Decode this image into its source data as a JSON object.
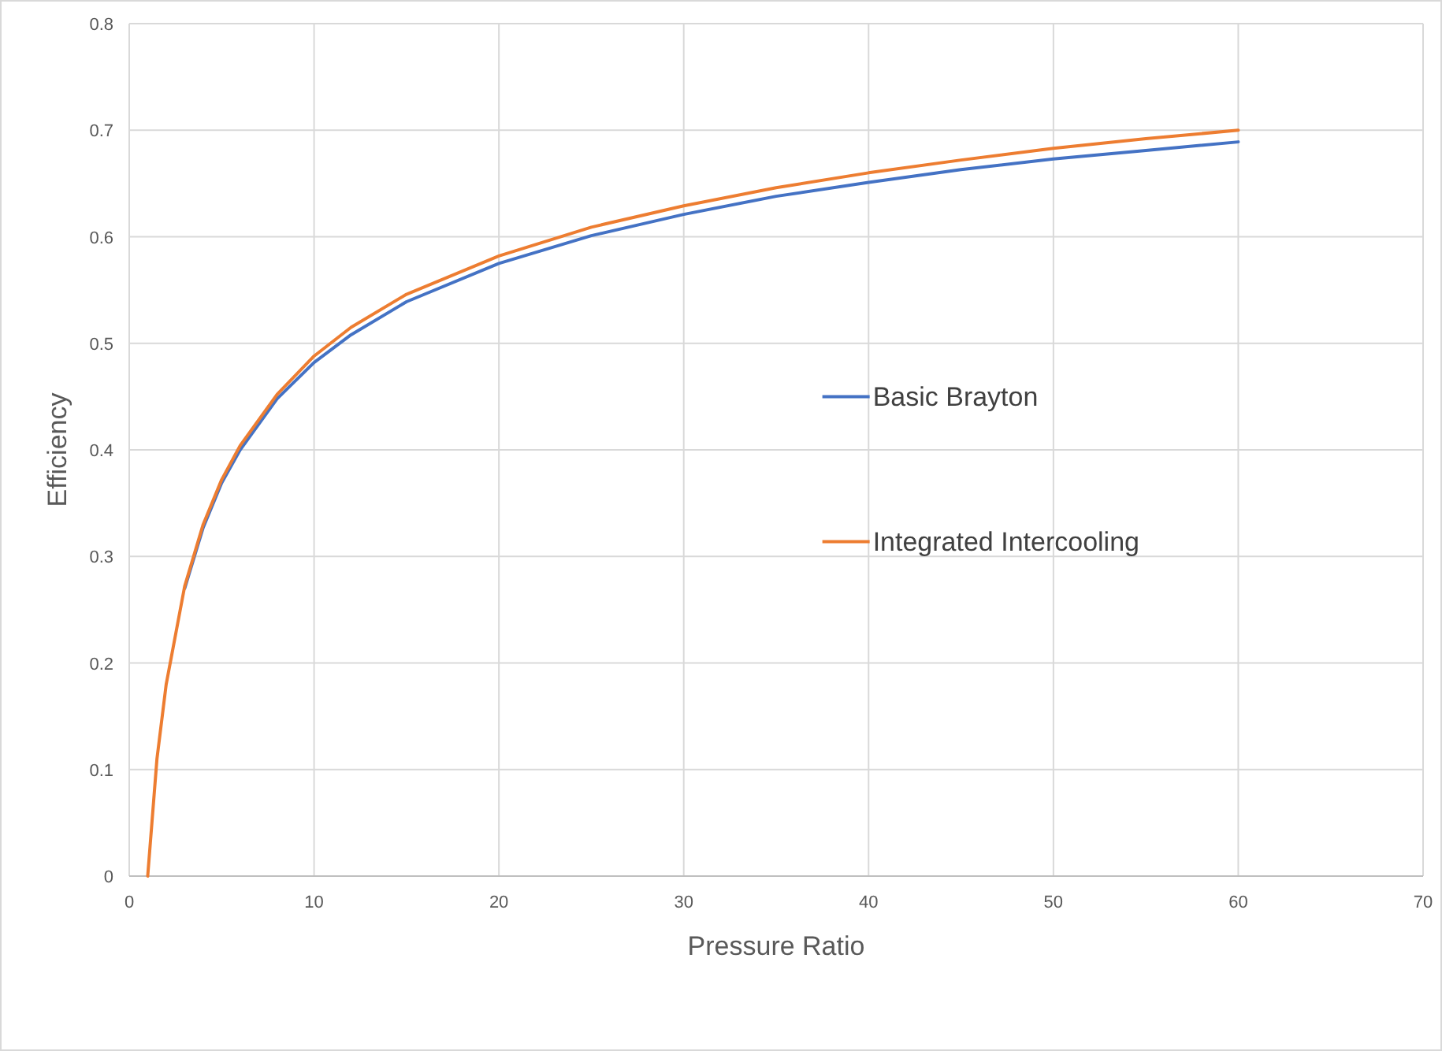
{
  "chart_data": {
    "type": "line",
    "xlabel": "Pressure Ratio",
    "ylabel": "Efficiency",
    "xlim": [
      0,
      70
    ],
    "xticks": [
      0,
      10,
      20,
      30,
      40,
      50,
      60,
      70
    ],
    "ylim": [
      0,
      0.8
    ],
    "yticks": [
      0,
      0.1,
      0.2,
      0.3,
      0.4,
      0.5,
      0.6,
      0.7,
      0.8
    ],
    "grid": true,
    "legend": "right",
    "marker": "none",
    "line_style": "solid",
    "series": [
      {
        "name": "Basic Brayton",
        "color": "#4472c4",
        "x": [
          3,
          4,
          5,
          6,
          8,
          10,
          12,
          15,
          20,
          25,
          30,
          35,
          40,
          45,
          50,
          55,
          60
        ],
        "values": [
          0.27,
          0.327,
          0.369,
          0.4,
          0.448,
          0.482,
          0.508,
          0.539,
          0.575,
          0.601,
          0.621,
          0.638,
          0.651,
          0.663,
          0.673,
          0.681,
          0.689
        ]
      },
      {
        "name": "Integrated Intercooling",
        "color": "#ed7d31",
        "x": [
          1,
          1.5,
          2,
          3,
          4,
          5,
          6,
          8,
          10,
          12,
          15,
          20,
          25,
          30,
          35,
          40,
          45,
          50,
          55,
          60
        ],
        "values": [
          0,
          0.11,
          0.18,
          0.272,
          0.33,
          0.372,
          0.404,
          0.452,
          0.488,
          0.515,
          0.546,
          0.582,
          0.609,
          0.629,
          0.646,
          0.66,
          0.672,
          0.683,
          0.692,
          0.7
        ]
      }
    ]
  }
}
